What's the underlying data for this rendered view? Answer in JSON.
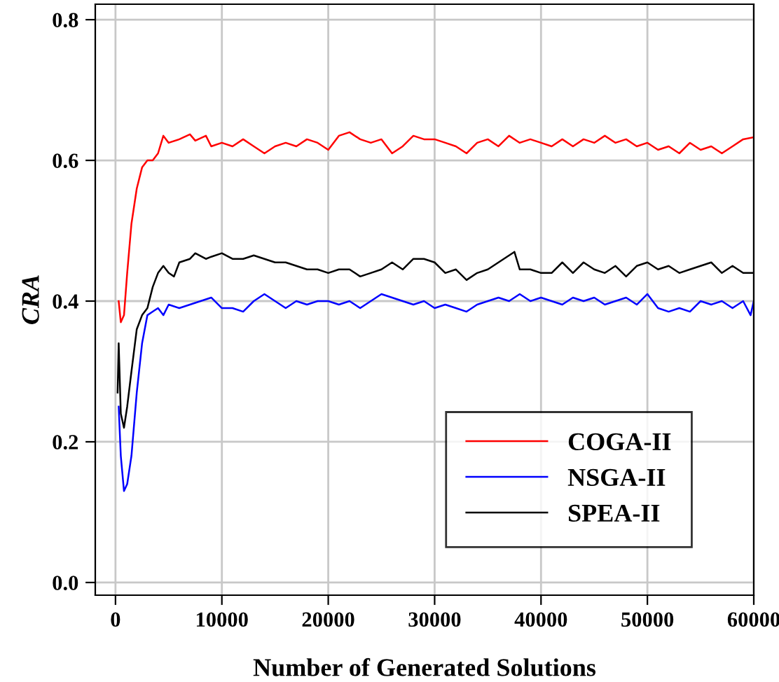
{
  "chart_data": {
    "type": "line",
    "xlabel": "Number of Generated Solutions",
    "ylabel": "CRA",
    "xlim": [
      -1900,
      60000
    ],
    "ylim": [
      -0.018,
      0.822
    ],
    "xticks": [
      0,
      10000,
      20000,
      30000,
      40000,
      50000,
      60000
    ],
    "yticks": [
      {
        "value": 0,
        "label": "0.0"
      },
      {
        "value": 0.2,
        "label": "0.2"
      },
      {
        "value": 0.4,
        "label": "0.4"
      },
      {
        "value": 0.6,
        "label": "0.6"
      },
      {
        "value": 0.8,
        "label": "0.8"
      }
    ],
    "grid": true,
    "legend": "bottom right",
    "line_style": "solid",
    "marker": "none",
    "series": [
      {
        "name": "COGA-II",
        "color": "#ff0000",
        "x": [
          300,
          500,
          800,
          1100,
          1500,
          2000,
          2500,
          3000,
          3500,
          4000,
          4500,
          5000,
          6000,
          7000,
          7500,
          8500,
          9000,
          10000,
          11000,
          12000,
          13000,
          14000,
          15000,
          16000,
          17000,
          18000,
          19000,
          20000,
          21000,
          22000,
          23000,
          24000,
          25000,
          26000,
          27000,
          28000,
          29000,
          30000,
          31000,
          32000,
          33000,
          34000,
          35000,
          36000,
          37000,
          38000,
          39000,
          40000,
          41000,
          42000,
          43000,
          44000,
          45000,
          46000,
          47000,
          48000,
          49000,
          50000,
          51000,
          52000,
          53000,
          54000,
          55000,
          56000,
          57000,
          58000,
          59000,
          60000
        ],
        "values": [
          0.4,
          0.37,
          0.38,
          0.44,
          0.51,
          0.56,
          0.59,
          0.6,
          0.6,
          0.61,
          0.635,
          0.625,
          0.63,
          0.637,
          0.628,
          0.635,
          0.62,
          0.625,
          0.62,
          0.63,
          0.62,
          0.61,
          0.62,
          0.625,
          0.62,
          0.63,
          0.625,
          0.615,
          0.635,
          0.64,
          0.63,
          0.625,
          0.63,
          0.61,
          0.62,
          0.635,
          0.63,
          0.63,
          0.625,
          0.62,
          0.61,
          0.625,
          0.63,
          0.62,
          0.635,
          0.625,
          0.63,
          0.625,
          0.62,
          0.63,
          0.62,
          0.63,
          0.625,
          0.635,
          0.625,
          0.63,
          0.62,
          0.625,
          0.615,
          0.62,
          0.61,
          0.625,
          0.615,
          0.62,
          0.61,
          0.62,
          0.63,
          0.633
        ]
      },
      {
        "name": "NSGA-II",
        "color": "#0000ff",
        "x": [
          300,
          500,
          800,
          1100,
          1500,
          2000,
          2500,
          3000,
          3500,
          4000,
          4500,
          5000,
          6000,
          7000,
          8000,
          9000,
          10000,
          11000,
          12000,
          13000,
          14000,
          15000,
          16000,
          17000,
          18000,
          19000,
          20000,
          21000,
          22000,
          23000,
          24000,
          25000,
          26000,
          27000,
          28000,
          29000,
          30000,
          31000,
          32000,
          33000,
          34000,
          35000,
          36000,
          37000,
          38000,
          39000,
          40000,
          41000,
          42000,
          43000,
          44000,
          45000,
          46000,
          47000,
          48000,
          49000,
          50000,
          51000,
          52000,
          53000,
          54000,
          55000,
          56000,
          57000,
          58000,
          59000,
          59700,
          60000
        ],
        "values": [
          0.25,
          0.18,
          0.13,
          0.14,
          0.18,
          0.27,
          0.34,
          0.38,
          0.385,
          0.39,
          0.38,
          0.395,
          0.39,
          0.395,
          0.4,
          0.405,
          0.39,
          0.39,
          0.385,
          0.4,
          0.41,
          0.4,
          0.39,
          0.4,
          0.395,
          0.4,
          0.4,
          0.395,
          0.4,
          0.39,
          0.4,
          0.41,
          0.405,
          0.4,
          0.395,
          0.4,
          0.39,
          0.395,
          0.39,
          0.385,
          0.395,
          0.4,
          0.405,
          0.4,
          0.41,
          0.4,
          0.405,
          0.4,
          0.395,
          0.405,
          0.4,
          0.405,
          0.395,
          0.4,
          0.405,
          0.395,
          0.41,
          0.39,
          0.385,
          0.39,
          0.385,
          0.4,
          0.395,
          0.4,
          0.39,
          0.4,
          0.38,
          0.4
        ]
      },
      {
        "name": "SPEA-II",
        "color": "#000000",
        "x": [
          200,
          300,
          500,
          800,
          1100,
          1500,
          2000,
          2500,
          3000,
          3500,
          4000,
          4500,
          5000,
          5500,
          6000,
          7000,
          7500,
          8500,
          9000,
          10000,
          11000,
          12000,
          13000,
          14000,
          15000,
          16000,
          17000,
          18000,
          19000,
          20000,
          21000,
          22000,
          23000,
          24000,
          25000,
          26000,
          27000,
          28000,
          29000,
          30000,
          31000,
          32000,
          33000,
          34000,
          35000,
          36000,
          37000,
          37500,
          38000,
          39000,
          40000,
          41000,
          42000,
          43000,
          44000,
          45000,
          46000,
          47000,
          48000,
          49000,
          50000,
          51000,
          52000,
          53000,
          54000,
          55000,
          56000,
          57000,
          58000,
          59000,
          60000
        ],
        "values": [
          0.27,
          0.34,
          0.24,
          0.22,
          0.25,
          0.3,
          0.36,
          0.38,
          0.39,
          0.42,
          0.44,
          0.45,
          0.44,
          0.435,
          0.455,
          0.46,
          0.468,
          0.46,
          0.463,
          0.468,
          0.46,
          0.46,
          0.465,
          0.46,
          0.455,
          0.455,
          0.45,
          0.445,
          0.445,
          0.44,
          0.445,
          0.445,
          0.435,
          0.44,
          0.445,
          0.455,
          0.445,
          0.46,
          0.46,
          0.455,
          0.44,
          0.445,
          0.43,
          0.44,
          0.445,
          0.455,
          0.465,
          0.47,
          0.445,
          0.445,
          0.44,
          0.44,
          0.455,
          0.44,
          0.455,
          0.445,
          0.44,
          0.45,
          0.435,
          0.45,
          0.455,
          0.445,
          0.45,
          0.44,
          0.445,
          0.45,
          0.455,
          0.44,
          0.45,
          0.44,
          0.44
        ]
      }
    ]
  }
}
